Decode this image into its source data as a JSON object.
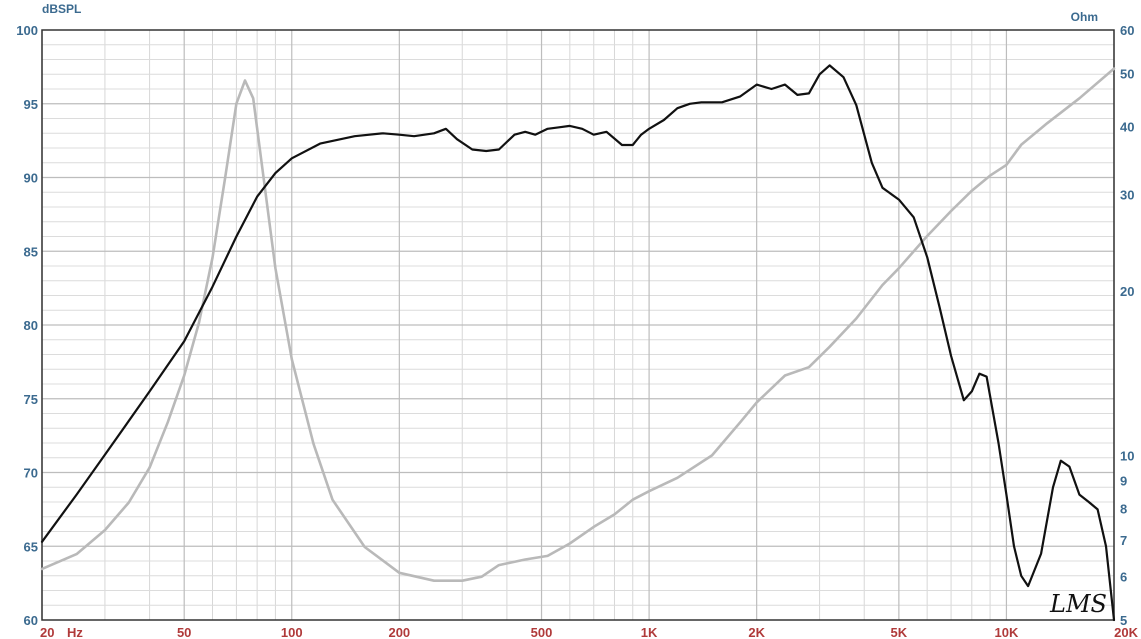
{
  "chart_data": {
    "type": "line",
    "x_scale": "log",
    "y_scale_right": "log",
    "xlim": [
      20,
      20000
    ],
    "ylim_left": [
      60,
      100
    ],
    "ylim_right": [
      5,
      60
    ],
    "grid": true,
    "left_unit": "dBSPL",
    "right_unit": "Ohm",
    "signature": "LMS",
    "x_ticks": [
      {
        "value": 20,
        "label": "20"
      },
      {
        "value": 50,
        "label": "50"
      },
      {
        "value": 100,
        "label": "100"
      },
      {
        "value": 200,
        "label": "200"
      },
      {
        "value": 500,
        "label": "500"
      },
      {
        "value": 1000,
        "label": "1K"
      },
      {
        "value": 2000,
        "label": "2K"
      },
      {
        "value": 5000,
        "label": "5K"
      },
      {
        "value": 10000,
        "label": "10K"
      },
      {
        "value": 20000,
        "label": "20K"
      }
    ],
    "x_unit_label": "Hz",
    "y_left_ticks": [
      60,
      65,
      70,
      75,
      80,
      85,
      90,
      95,
      100
    ],
    "y_right_ticks": [
      5,
      6,
      7,
      8,
      9,
      10,
      20,
      30,
      40,
      50,
      60
    ],
    "series": [
      {
        "axis": "left",
        "color": "#111111",
        "points": [
          [
            20,
            65.3
          ],
          [
            25,
            68.5
          ],
          [
            30,
            71.2
          ],
          [
            40,
            75.5
          ],
          [
            50,
            78.9
          ],
          [
            60,
            82.6
          ],
          [
            70,
            86.0
          ],
          [
            80,
            88.7
          ],
          [
            90,
            90.3
          ],
          [
            100,
            91.3
          ],
          [
            120,
            92.3
          ],
          [
            150,
            92.8
          ],
          [
            180,
            93.0
          ],
          [
            200,
            92.9
          ],
          [
            220,
            92.8
          ],
          [
            250,
            93.0
          ],
          [
            270,
            93.3
          ],
          [
            290,
            92.6
          ],
          [
            320,
            91.9
          ],
          [
            350,
            91.8
          ],
          [
            380,
            91.9
          ],
          [
            420,
            92.9
          ],
          [
            450,
            93.1
          ],
          [
            480,
            92.9
          ],
          [
            520,
            93.3
          ],
          [
            560,
            93.4
          ],
          [
            600,
            93.5
          ],
          [
            650,
            93.3
          ],
          [
            700,
            92.9
          ],
          [
            760,
            93.1
          ],
          [
            840,
            92.2
          ],
          [
            900,
            92.2
          ],
          [
            950,
            92.9
          ],
          [
            1000,
            93.3
          ],
          [
            1100,
            93.9
          ],
          [
            1200,
            94.7
          ],
          [
            1300,
            95.0
          ],
          [
            1400,
            95.1
          ],
          [
            1600,
            95.1
          ],
          [
            1800,
            95.5
          ],
          [
            2000,
            96.3
          ],
          [
            2200,
            96.0
          ],
          [
            2400,
            96.3
          ],
          [
            2600,
            95.6
          ],
          [
            2800,
            95.7
          ],
          [
            3000,
            97.0
          ],
          [
            3200,
            97.6
          ],
          [
            3500,
            96.8
          ],
          [
            3800,
            94.9
          ],
          [
            4200,
            91.0
          ],
          [
            4500,
            89.3
          ],
          [
            5000,
            88.5
          ],
          [
            5500,
            87.3
          ],
          [
            6000,
            84.6
          ],
          [
            6500,
            81.2
          ],
          [
            7000,
            77.9
          ],
          [
            7600,
            74.9
          ],
          [
            8000,
            75.5
          ],
          [
            8400,
            76.7
          ],
          [
            8800,
            76.5
          ],
          [
            9500,
            72.0
          ],
          [
            10000,
            68.5
          ],
          [
            10500,
            65.0
          ],
          [
            11000,
            63.0
          ],
          [
            11500,
            62.3
          ],
          [
            12500,
            64.5
          ],
          [
            13500,
            69.0
          ],
          [
            14200,
            70.8
          ],
          [
            15000,
            70.4
          ],
          [
            16000,
            68.5
          ],
          [
            17000,
            68.0
          ],
          [
            18000,
            67.5
          ],
          [
            19000,
            65.0
          ],
          [
            20000,
            60.0
          ]
        ]
      },
      {
        "axis": "right",
        "color": "#b9b9b9",
        "points": [
          [
            20,
            6.2
          ],
          [
            25,
            6.6
          ],
          [
            30,
            7.3
          ],
          [
            35,
            8.2
          ],
          [
            40,
            9.5
          ],
          [
            45,
            11.5
          ],
          [
            50,
            14.0
          ],
          [
            55,
            17.5
          ],
          [
            60,
            23.0
          ],
          [
            65,
            32.0
          ],
          [
            70,
            44.0
          ],
          [
            74,
            48.5
          ],
          [
            78,
            45.0
          ],
          [
            82,
            35.0
          ],
          [
            90,
            22.0
          ],
          [
            100,
            15.0
          ],
          [
            115,
            10.5
          ],
          [
            130,
            8.3
          ],
          [
            160,
            6.8
          ],
          [
            200,
            6.1
          ],
          [
            250,
            5.9
          ],
          [
            300,
            5.9
          ],
          [
            340,
            6.0
          ],
          [
            380,
            6.3
          ],
          [
            450,
            6.45
          ],
          [
            520,
            6.55
          ],
          [
            600,
            6.9
          ],
          [
            700,
            7.4
          ],
          [
            800,
            7.8
          ],
          [
            900,
            8.3
          ],
          [
            1000,
            8.6
          ],
          [
            1200,
            9.1
          ],
          [
            1500,
            10.0
          ],
          [
            1800,
            11.5
          ],
          [
            2000,
            12.5
          ],
          [
            2400,
            14.0
          ],
          [
            2800,
            14.5
          ],
          [
            3200,
            15.8
          ],
          [
            3800,
            17.8
          ],
          [
            4500,
            20.5
          ],
          [
            5000,
            22.0
          ],
          [
            6000,
            25.2
          ],
          [
            7000,
            28.0
          ],
          [
            8000,
            30.5
          ],
          [
            9000,
            32.5
          ],
          [
            10000,
            34.0
          ],
          [
            11000,
            37.0
          ],
          [
            13000,
            40.5
          ],
          [
            16000,
            45.0
          ],
          [
            20000,
            51.0
          ]
        ]
      }
    ]
  }
}
